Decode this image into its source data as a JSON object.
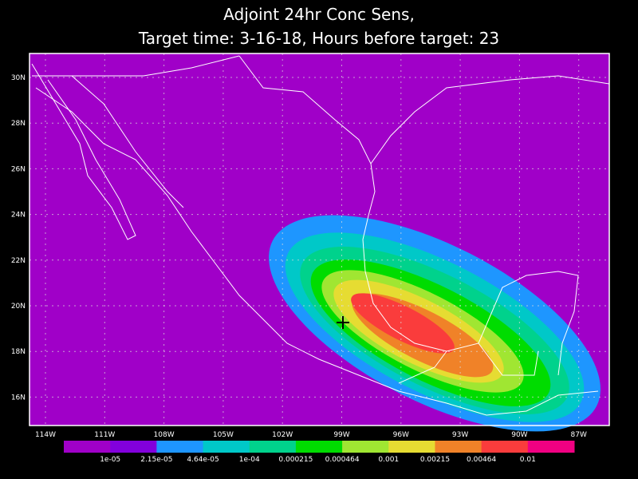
{
  "header": {
    "line1": "Adjoint 24hr Conc Sens,",
    "line2": "Target time: 3-16-18, Hours before target: 23"
  },
  "lat_labels": [
    "30N",
    "28N",
    "26N",
    "24N",
    "22N",
    "20N",
    "18N",
    "16N"
  ],
  "lon_labels": [
    "114W",
    "111W",
    "108W",
    "105W",
    "102W",
    "99W",
    "96W",
    "93W",
    "90W",
    "87W"
  ],
  "colorbar": {
    "colors": [
      "#a000c8",
      "#8200dc",
      "#1e96ff",
      "#00c8c8",
      "#00d28c",
      "#00dc00",
      "#a0e632",
      "#e6dc32",
      "#f08228",
      "#fa3c3c",
      "#f00082"
    ],
    "labels": [
      "1e-05",
      "2.15e-05",
      "4.64e-05",
      "1e-04",
      "0.000215",
      "0.000464",
      "0.001",
      "0.00215",
      "0.00464",
      "0.01"
    ]
  }
}
